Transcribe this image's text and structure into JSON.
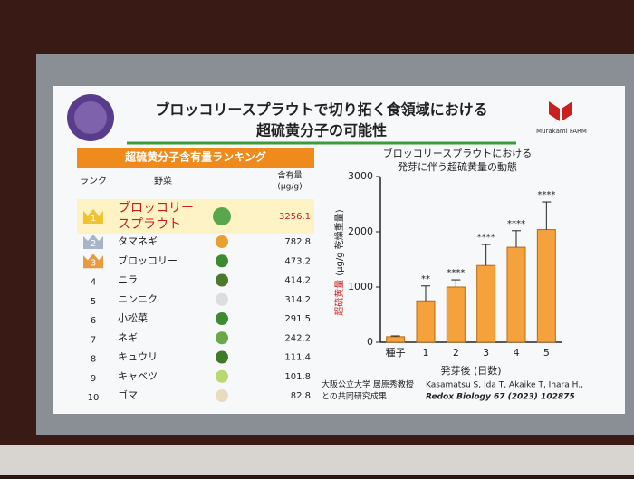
{
  "slide": {
    "title_lines": [
      "ブロッコリースプラウトで切り拓く食領域における",
      "超硫黄分子の可能性"
    ],
    "logo_text": "Murakami FARM"
  },
  "table": {
    "title": "超硫黄分子含有量ランキング",
    "headers": [
      "ランク",
      "野菜",
      [
        "含有量",
        "(μg/g)"
      ]
    ],
    "rows": [
      {
        "rank": 1,
        "name": [
          "ブロッコリー",
          "スプラウト"
        ],
        "value": 3256.1
      },
      {
        "rank": 2,
        "name": "タマネギ",
        "value": 782.8
      },
      {
        "rank": 3,
        "name": "ブロッコリー",
        "value": 473.2
      },
      {
        "rank": 4,
        "name": "ニラ",
        "value": 414.2
      },
      {
        "rank": 5,
        "name": "ニンニク",
        "value": 314.2
      },
      {
        "rank": 6,
        "name": "小松菜",
        "value": 291.5
      },
      {
        "rank": 7,
        "name": "ネギ",
        "value": 242.2
      },
      {
        "rank": 8,
        "name": "キュウリ",
        "value": 111.4
      },
      {
        "rank": 9,
        "name": "キャベツ",
        "value": 101.8
      },
      {
        "rank": 10,
        "name": "ゴマ",
        "value": 82.8
      }
    ]
  },
  "chart_data": {
    "type": "bar",
    "title_lines": [
      "ブロッコリースプラウトにおける",
      "発芽に伴う超硫黄量の動態"
    ],
    "y_label": "超硫黄量",
    "y_label_unit": "(μg/g 乾燥重量)",
    "x_label": "発芽後 (日数)",
    "categories": [
      "種子",
      "1",
      "2",
      "3",
      "4",
      "5"
    ],
    "values": [
      100,
      750,
      1000,
      1390,
      1720,
      2040
    ],
    "errors": [
      15,
      270,
      130,
      380,
      300,
      500
    ],
    "annotations": [
      null,
      "**",
      "****",
      "****",
      "****",
      "****"
    ],
    "color": "#f5a13c",
    "ylim": [
      0,
      3000
    ],
    "yticks": [
      0,
      1000,
      2000,
      3000
    ]
  },
  "footer": {
    "credit_lines": [
      "大阪公立大学 居原秀教授",
      "との共同研究成果"
    ],
    "citation_lines": [
      "Kasamatsu S, Ida T, Akaike T, Ihara H.,",
      "Redox Biology 67 (2023) 102875"
    ]
  }
}
